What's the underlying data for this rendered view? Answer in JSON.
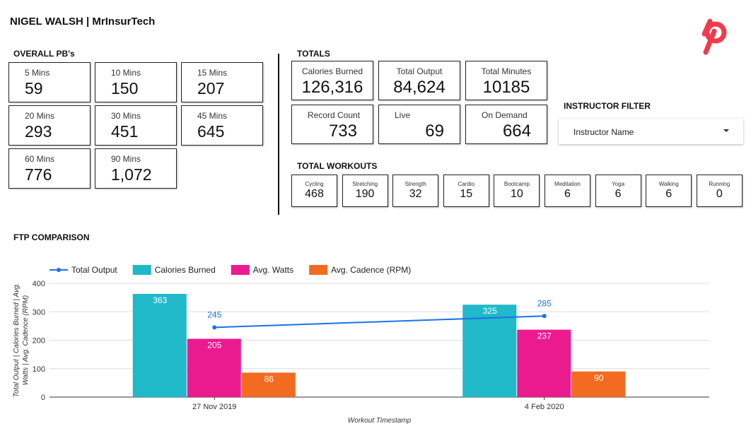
{
  "header": {
    "title": "NIGEL WALSH | MrInsurTech",
    "logo_icon": "peloton-logo-icon",
    "logo_color": "#f13b4d"
  },
  "pbs": {
    "heading": "OVERALL PB's",
    "items": [
      {
        "label": "5 Mins",
        "value": "59"
      },
      {
        "label": "10 Mins",
        "value": "150"
      },
      {
        "label": "15 Mins",
        "value": "207"
      },
      {
        "label": "20 Mins",
        "value": "293"
      },
      {
        "label": "30 Mins",
        "value": "451"
      },
      {
        "label": "45 Mins",
        "value": "645"
      },
      {
        "label": "60 Mins",
        "value": "776"
      },
      {
        "label": "90 Mins",
        "value": "1,072"
      }
    ]
  },
  "totals": {
    "heading": "TOTALS",
    "items": [
      {
        "label": "Calories Burned",
        "value": "126,316"
      },
      {
        "label": "Total Output",
        "value": "84,624"
      },
      {
        "label": "Total Minutes",
        "value": "10185"
      },
      {
        "label": "Record Count",
        "value": "733"
      },
      {
        "label": "Live",
        "value": "69"
      },
      {
        "label": "On Demand",
        "value": "664"
      }
    ]
  },
  "workouts": {
    "heading": "TOTAL WORKOUTS",
    "items": [
      {
        "label": "Cycling",
        "value": "468"
      },
      {
        "label": "Stretching",
        "value": "190"
      },
      {
        "label": "Strength",
        "value": "32"
      },
      {
        "label": "Cardio",
        "value": "15"
      },
      {
        "label": "Bootcamp",
        "value": "10"
      },
      {
        "label": "Meditation",
        "value": "6"
      },
      {
        "label": "Yoga",
        "value": "6"
      },
      {
        "label": "Walking",
        "value": "6"
      },
      {
        "label": "Running",
        "value": "0"
      }
    ]
  },
  "filter": {
    "heading": "INSTRUCTOR FILTER",
    "selected": "Instructor Name",
    "icon": "chevron-down-icon"
  },
  "chart_section": {
    "heading": "FTP COMPARISON"
  },
  "chart_data": {
    "type": "bar",
    "title": "",
    "xlabel": "Workout Timestamp",
    "ylabel": "Total Output | Calories Burned | Avg. Watts | Avg. Cadence (RPM)",
    "ylim": [
      0,
      400
    ],
    "yticks": [
      "0",
      "100",
      "200",
      "300",
      "400"
    ],
    "grid": true,
    "legend_position": "top-left",
    "categories": [
      "27 Nov 2019",
      "4 Feb 2020"
    ],
    "series": [
      {
        "name": "Total Output",
        "kind": "line",
        "color": "#1a73e8",
        "values": [
          245,
          285
        ]
      },
      {
        "name": "Calories Burned",
        "kind": "bar",
        "color": "#20b9c9",
        "values": [
          363,
          325
        ]
      },
      {
        "name": "Avg. Watts",
        "kind": "bar",
        "color": "#ec1a8f",
        "values": [
          205,
          237
        ]
      },
      {
        "name": "Avg. Cadence (RPM)",
        "kind": "bar",
        "color": "#f26b21",
        "values": [
          86,
          90
        ]
      }
    ]
  }
}
